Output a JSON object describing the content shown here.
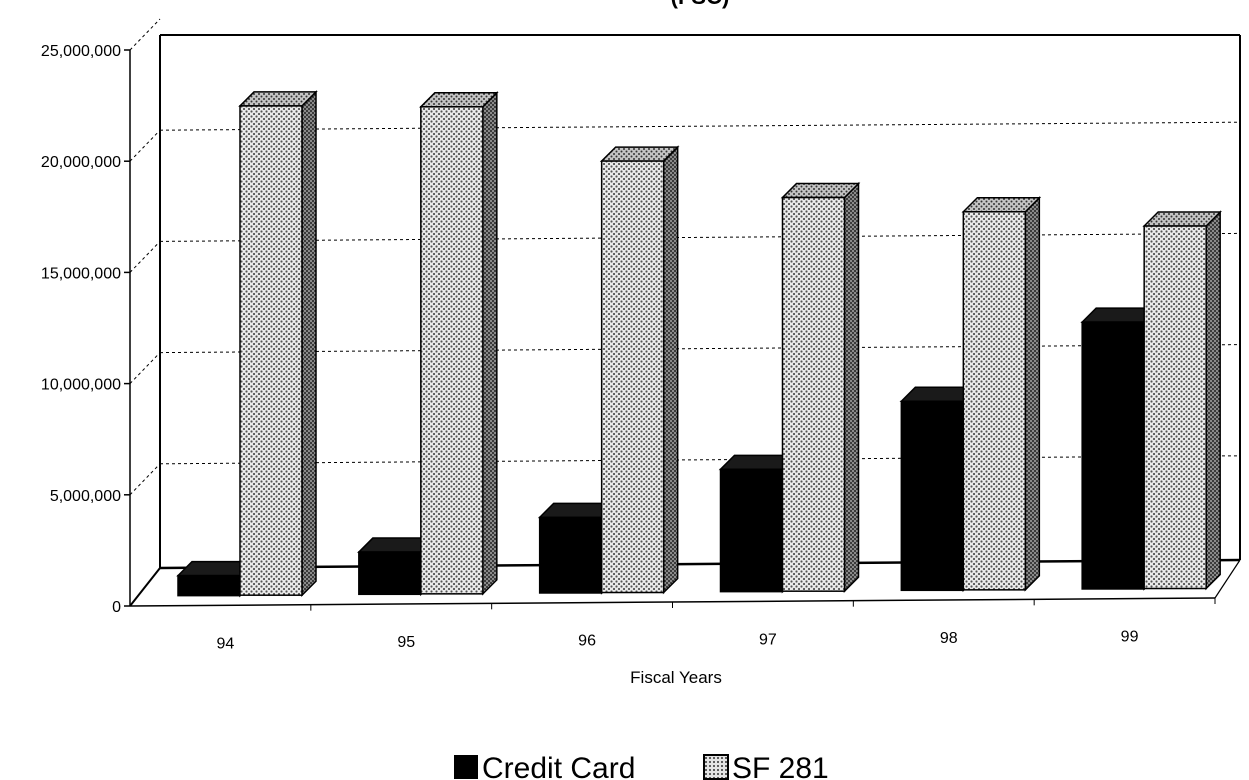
{
  "chart_data": {
    "type": "bar",
    "title": "(FSC)",
    "xlabel": "Fiscal Years",
    "ylabel": "",
    "categories": [
      "94",
      "95",
      "96",
      "97",
      "98",
      "99"
    ],
    "series": [
      {
        "name": "Credit Card",
        "values": [
          900000,
          1900000,
          3400000,
          5500000,
          8500000,
          12000000
        ],
        "color": "#000000",
        "pattern": "solid"
      },
      {
        "name": "SF 281",
        "values": [
          22000000,
          21900000,
          19400000,
          17700000,
          17000000,
          16300000
        ],
        "color": "#d8d8d8",
        "pattern": "dotted"
      }
    ],
    "ylim": [
      0,
      25000000
    ],
    "yticks": [
      "0",
      "5,000,000",
      "10,000,000",
      "15,000,000",
      "20,000,000",
      "25,000,000"
    ],
    "grid": true,
    "legend_position": "bottom"
  }
}
